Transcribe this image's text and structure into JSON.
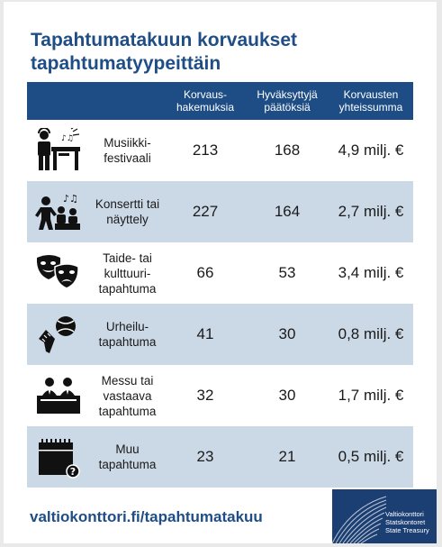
{
  "title": {
    "line1": "Tapahtumatakuun korvaukset",
    "line2": "tapahtumatyypeittäin"
  },
  "table": {
    "headers": {
      "type": "",
      "applications": "Korvaus-\nhakemuksia",
      "approved": "Hyväksyttyjä\npäätöksiä",
      "total": "Korvausten\nyhteissumma"
    },
    "rows": [
      {
        "icon": "dj-festival-icon",
        "type": "Musiikki-\nfestivaali",
        "applications": "213",
        "approved": "168",
        "total": "4,9 milj. €"
      },
      {
        "icon": "concert-theater-icon",
        "type": "Konsertti tai\nnäyttely",
        "applications": "227",
        "approved": "164",
        "total": "2,7 milj. €"
      },
      {
        "icon": "theater-masks-icon",
        "type": "Taide- tai\nkulttuuri-\ntapahtuma",
        "applications": "66",
        "approved": "53",
        "total": "3,4 milj. €"
      },
      {
        "icon": "sports-equipment-icon",
        "type": "Urheilu-\ntapahtuma",
        "applications": "41",
        "approved": "30",
        "total": "0,8 milj. €"
      },
      {
        "icon": "trade-fair-booth-icon",
        "type": "Messu tai\nvastaava\ntapahtuma",
        "applications": "32",
        "approved": "30",
        "total": "1,7 milj. €"
      },
      {
        "icon": "calendar-question-icon",
        "type": "Muu\ntapahtuma",
        "applications": "23",
        "approved": "21",
        "total": "0,5 milj. €"
      }
    ]
  },
  "footer": {
    "url": "valtiokonttori.fi/tapahtumatakuu",
    "logo_lines": [
      "Valtiokonttori",
      "Statskontoret",
      "State Treasury"
    ]
  },
  "colors": {
    "brand_blue": "#1f4e86",
    "header_bg": "#1e4d86",
    "row_shade": "#cbd8e6",
    "logo_bg": "#1c3f73"
  }
}
